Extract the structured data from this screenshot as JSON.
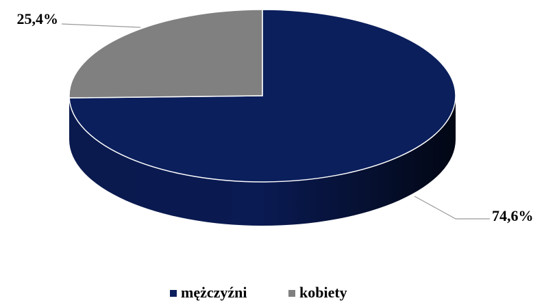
{
  "chart_data": {
    "type": "pie",
    "categories": [
      "mężczyźni",
      "kobiety"
    ],
    "values": [
      74.6,
      25.4
    ],
    "value_labels": [
      "74,6%",
      "25,4%"
    ],
    "colors": [
      "#0b1f5c",
      "#808080"
    ],
    "legend": "bottom"
  }
}
